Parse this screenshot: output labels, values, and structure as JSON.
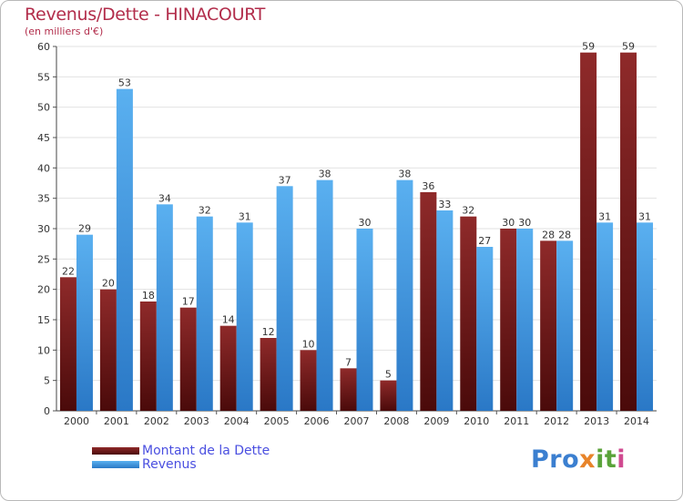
{
  "chart_data": {
    "type": "bar",
    "title": "Revenus/Dette - HINACOURT",
    "subtitle": "(en milliers d'€)",
    "categories": [
      "2000",
      "2001",
      "2002",
      "2003",
      "2004",
      "2005",
      "2006",
      "2007",
      "2008",
      "2009",
      "2010",
      "2011",
      "2012",
      "2013",
      "2014"
    ],
    "series": [
      {
        "name": "Montant de la Dette",
        "color": "#7a1e1e",
        "values": [
          22,
          20,
          18,
          17,
          14,
          12,
          10,
          7,
          5,
          36,
          32,
          30,
          28,
          59,
          59
        ]
      },
      {
        "name": "Revenus",
        "color": "#4a9fe6",
        "values": [
          29,
          53,
          34,
          32,
          31,
          37,
          38,
          30,
          38,
          33,
          27,
          30,
          28,
          31,
          31
        ]
      }
    ],
    "ylim": [
      0,
      60
    ],
    "yticks": [
      0,
      5,
      10,
      15,
      20,
      25,
      30,
      35,
      40,
      45,
      50,
      55,
      60
    ],
    "grid": "horizontal",
    "legend_position": "bottom-left"
  },
  "logo": {
    "part1": "Pro",
    "part2": "x",
    "part3": "it",
    "part4": "i"
  }
}
